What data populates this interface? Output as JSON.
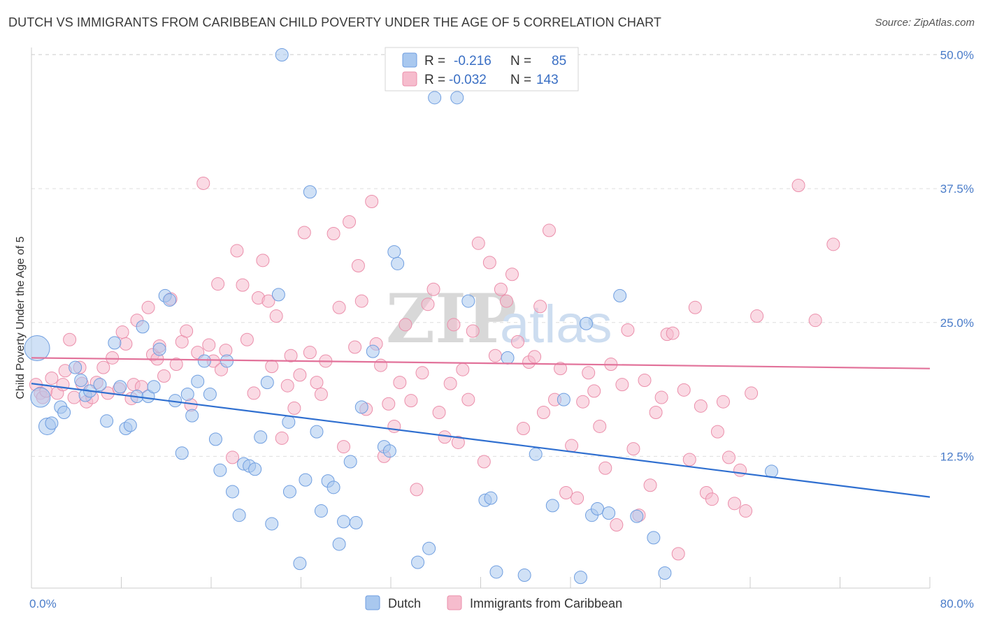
{
  "title": "DUTCH VS IMMIGRANTS FROM CARIBBEAN CHILD POVERTY UNDER THE AGE OF 5 CORRELATION CHART",
  "source": "Source: ZipAtlas.com",
  "watermark": {
    "zip": "ZIP",
    "atlas": "atlas"
  },
  "colors": {
    "dutch_fill": "#a9c8ef",
    "dutch_stroke": "#6f9ee0",
    "dutch_line": "#2f6fd0",
    "carib_fill": "#f6bccd",
    "carib_stroke": "#eb8fab",
    "carib_line": "#e2729a",
    "grid": "#dddddd",
    "axis_label": "#4a7cc9"
  },
  "legend": {
    "rows": [
      {
        "r_label": "R =",
        "r_value": "-0.216",
        "n_label": "N =",
        "n_value": "85"
      },
      {
        "r_label": "R =",
        "r_value": "-0.032",
        "n_label": "N =",
        "n_value": "143"
      }
    ]
  },
  "bottom_legend": [
    "Dutch",
    "Immigrants from Caribbean"
  ],
  "chart_data": {
    "type": "scatter",
    "title": "DUTCH VS IMMIGRANTS FROM CARIBBEAN CHILD POVERTY UNDER THE AGE OF 5 CORRELATION CHART",
    "xlabel": "",
    "ylabel": "Child Poverty Under the Age of 5",
    "xlim": [
      0,
      80
    ],
    "ylim": [
      0,
      50
    ],
    "x_tick_labels": [
      "0.0%",
      "80.0%"
    ],
    "y_ticks": [
      12.5,
      25.0,
      37.5,
      50.0
    ],
    "y_tick_labels": [
      "12.5%",
      "25.0%",
      "37.5%",
      "50.0%"
    ],
    "grid": "horizontal dashed",
    "legend_placement": "top-center",
    "series": [
      {
        "name": "Dutch",
        "trend": {
          "x": [
            0,
            80
          ],
          "y": [
            19.3,
            8.7
          ]
        },
        "points": [
          [
            0.5,
            22.6,
            18
          ],
          [
            0.8,
            18.0,
            14
          ],
          [
            1.4,
            15.3,
            12
          ],
          [
            1.8,
            15.6,
            9
          ],
          [
            2.6,
            17.1,
            9
          ],
          [
            2.9,
            16.6,
            9
          ],
          [
            3.9,
            20.8,
            9
          ],
          [
            4.4,
            19.6,
            9
          ],
          [
            4.8,
            18.2,
            9
          ],
          [
            5.2,
            18.6,
            9
          ],
          [
            6.1,
            19.2,
            9
          ],
          [
            6.7,
            15.8,
            9
          ],
          [
            7.4,
            23.1,
            9
          ],
          [
            7.9,
            19.0,
            9
          ],
          [
            8.4,
            15.1,
            9
          ],
          [
            8.8,
            15.4,
            9
          ],
          [
            9.4,
            18.1,
            9
          ],
          [
            9.9,
            24.6,
            9
          ],
          [
            10.4,
            18.1,
            9
          ],
          [
            10.9,
            19.0,
            9
          ],
          [
            11.4,
            22.5,
            9
          ],
          [
            11.9,
            27.5,
            9
          ],
          [
            12.3,
            27.1,
            9
          ],
          [
            12.8,
            17.7,
            9
          ],
          [
            13.4,
            12.8,
            9
          ],
          [
            13.9,
            18.3,
            9
          ],
          [
            14.3,
            16.3,
            9
          ],
          [
            14.8,
            19.5,
            9
          ],
          [
            15.4,
            21.4,
            9
          ],
          [
            15.9,
            18.3,
            9
          ],
          [
            16.4,
            14.1,
            9
          ],
          [
            16.8,
            11.2,
            9
          ],
          [
            17.4,
            21.4,
            9
          ],
          [
            17.9,
            9.2,
            9
          ],
          [
            18.5,
            7.0,
            9
          ],
          [
            18.9,
            11.8,
            9
          ],
          [
            19.4,
            11.6,
            9
          ],
          [
            19.9,
            11.3,
            9
          ],
          [
            20.4,
            14.3,
            9
          ],
          [
            21.0,
            19.4,
            9
          ],
          [
            21.4,
            6.2,
            9
          ],
          [
            22.0,
            27.6,
            9
          ],
          [
            22.3,
            50.0,
            9
          ],
          [
            22.9,
            15.7,
            9
          ],
          [
            23.0,
            9.2,
            9
          ],
          [
            23.9,
            2.5,
            9
          ],
          [
            24.4,
            10.3,
            9
          ],
          [
            24.8,
            37.2,
            9
          ],
          [
            25.4,
            14.8,
            9
          ],
          [
            25.8,
            7.4,
            9
          ],
          [
            26.4,
            10.2,
            9
          ],
          [
            26.9,
            9.6,
            9
          ],
          [
            27.4,
            4.3,
            9
          ],
          [
            27.8,
            6.4,
            9
          ],
          [
            28.4,
            12.0,
            9
          ],
          [
            28.9,
            6.3,
            9
          ],
          [
            29.4,
            17.1,
            9
          ],
          [
            30.4,
            22.3,
            9
          ],
          [
            31.4,
            13.4,
            9
          ],
          [
            31.9,
            13.0,
            9
          ],
          [
            32.3,
            31.6,
            9
          ],
          [
            32.6,
            30.5,
            9
          ],
          [
            34.4,
            2.6,
            9
          ],
          [
            35.4,
            3.9,
            9
          ],
          [
            35.9,
            46.0,
            9
          ],
          [
            37.9,
            46.0,
            9
          ],
          [
            38.9,
            27.0,
            9
          ],
          [
            40.4,
            8.4,
            9
          ],
          [
            40.9,
            8.6,
            9
          ],
          [
            41.4,
            1.7,
            9
          ],
          [
            42.4,
            21.7,
            9
          ],
          [
            43.9,
            1.4,
            9
          ],
          [
            44.9,
            12.7,
            9
          ],
          [
            46.4,
            7.9,
            9
          ],
          [
            47.4,
            17.8,
            9
          ],
          [
            48.9,
            1.2,
            9
          ],
          [
            49.4,
            24.9,
            9
          ],
          [
            49.9,
            7.0,
            9
          ],
          [
            50.4,
            7.6,
            9
          ],
          [
            51.4,
            7.2,
            9
          ],
          [
            52.4,
            27.5,
            9
          ],
          [
            53.9,
            6.9,
            9
          ],
          [
            55.4,
            4.9,
            9
          ],
          [
            56.4,
            1.6,
            9
          ],
          [
            65.9,
            11.1,
            9
          ]
        ]
      },
      {
        "name": "Immigrants from Caribbean",
        "trend": {
          "x": [
            0,
            80
          ],
          "y": [
            21.7,
            20.7
          ]
        },
        "points": [
          [
            0.4,
            19.2,
            9
          ],
          [
            0.8,
            18.4,
            9
          ],
          [
            1.0,
            18.0,
            9
          ],
          [
            1.3,
            18.6,
            9
          ],
          [
            1.8,
            19.8,
            9
          ],
          [
            2.3,
            18.4,
            9
          ],
          [
            2.8,
            19.2,
            9
          ],
          [
            3.0,
            20.5,
            9
          ],
          [
            3.4,
            23.4,
            9
          ],
          [
            3.8,
            18.0,
            9
          ],
          [
            4.3,
            20.8,
            9
          ],
          [
            4.5,
            19.3,
            9
          ],
          [
            4.9,
            17.6,
            9
          ],
          [
            5.4,
            18.0,
            9
          ],
          [
            5.8,
            19.4,
            9
          ],
          [
            6.4,
            20.8,
            9
          ],
          [
            6.8,
            18.4,
            9
          ],
          [
            7.2,
            21.7,
            9
          ],
          [
            7.8,
            18.8,
            9
          ],
          [
            8.1,
            24.1,
            9
          ],
          [
            8.4,
            23.0,
            9
          ],
          [
            8.9,
            17.9,
            9
          ],
          [
            9.1,
            19.2,
            9
          ],
          [
            9.4,
            25.2,
            9
          ],
          [
            9.8,
            19.0,
            9
          ],
          [
            10.4,
            26.4,
            9
          ],
          [
            10.8,
            22.0,
            9
          ],
          [
            11.2,
            21.6,
            9
          ],
          [
            11.4,
            22.8,
            9
          ],
          [
            11.8,
            20.0,
            9
          ],
          [
            12.4,
            27.2,
            9
          ],
          [
            12.9,
            21.1,
            9
          ],
          [
            13.4,
            23.2,
            9
          ],
          [
            13.8,
            24.2,
            9
          ],
          [
            14.2,
            17.3,
            9
          ],
          [
            14.8,
            22.2,
            9
          ],
          [
            15.3,
            38.0,
            9
          ],
          [
            15.8,
            22.9,
            9
          ],
          [
            16.2,
            21.4,
            9
          ],
          [
            16.6,
            28.6,
            9
          ],
          [
            16.9,
            20.6,
            9
          ],
          [
            17.3,
            22.4,
            9
          ],
          [
            17.9,
            12.4,
            9
          ],
          [
            18.3,
            31.7,
            9
          ],
          [
            18.8,
            28.5,
            9
          ],
          [
            19.2,
            23.4,
            9
          ],
          [
            19.8,
            18.4,
            9
          ],
          [
            20.2,
            27.3,
            9
          ],
          [
            20.6,
            30.8,
            9
          ],
          [
            21.1,
            27.0,
            9
          ],
          [
            21.4,
            20.9,
            9
          ],
          [
            21.8,
            25.6,
            9
          ],
          [
            22.3,
            14.2,
            9
          ],
          [
            22.8,
            19.1,
            9
          ],
          [
            23.1,
            21.9,
            9
          ],
          [
            23.4,
            17.0,
            9
          ],
          [
            23.9,
            20.1,
            9
          ],
          [
            24.3,
            33.4,
            9
          ],
          [
            24.8,
            22.2,
            9
          ],
          [
            25.4,
            19.4,
            9
          ],
          [
            25.8,
            18.3,
            9
          ],
          [
            26.2,
            21.4,
            9
          ],
          [
            26.9,
            33.3,
            9
          ],
          [
            27.4,
            26.4,
            9
          ],
          [
            27.8,
            13.4,
            9
          ],
          [
            28.3,
            34.4,
            9
          ],
          [
            28.8,
            22.7,
            9
          ],
          [
            29.1,
            30.3,
            9
          ],
          [
            29.4,
            27.0,
            9
          ],
          [
            29.8,
            16.9,
            9
          ],
          [
            30.3,
            36.3,
            9
          ],
          [
            30.7,
            23.0,
            9
          ],
          [
            31.1,
            21.0,
            9
          ],
          [
            31.4,
            12.5,
            9
          ],
          [
            31.8,
            17.4,
            9
          ],
          [
            32.3,
            15.3,
            9
          ],
          [
            32.8,
            19.4,
            9
          ],
          [
            33.3,
            24.8,
            9
          ],
          [
            33.8,
            17.7,
            9
          ],
          [
            34.3,
            9.4,
            9
          ],
          [
            34.8,
            20.3,
            9
          ],
          [
            35.3,
            26.7,
            9
          ],
          [
            35.8,
            28.1,
            9
          ],
          [
            36.3,
            16.6,
            9
          ],
          [
            36.8,
            14.3,
            9
          ],
          [
            37.3,
            19.3,
            9
          ],
          [
            37.6,
            24.8,
            9
          ],
          [
            38.0,
            13.8,
            9
          ],
          [
            38.4,
            20.6,
            9
          ],
          [
            38.9,
            17.8,
            9
          ],
          [
            39.3,
            24.2,
            9
          ],
          [
            39.8,
            32.4,
            9
          ],
          [
            40.3,
            12.0,
            9
          ],
          [
            40.8,
            30.6,
            9
          ],
          [
            41.3,
            21.9,
            9
          ],
          [
            41.8,
            28.1,
            9
          ],
          [
            42.3,
            27.0,
            9
          ],
          [
            42.8,
            29.5,
            9
          ],
          [
            43.3,
            23.2,
            9
          ],
          [
            43.8,
            15.1,
            9
          ],
          [
            44.3,
            21.3,
            9
          ],
          [
            44.8,
            21.8,
            9
          ],
          [
            45.3,
            26.5,
            9
          ],
          [
            45.6,
            16.6,
            9
          ],
          [
            46.1,
            33.6,
            9
          ],
          [
            46.6,
            17.8,
            9
          ],
          [
            47.1,
            20.7,
            9
          ],
          [
            47.6,
            9.1,
            9
          ],
          [
            48.1,
            13.5,
            9
          ],
          [
            48.6,
            8.6,
            9
          ],
          [
            49.1,
            17.6,
            9
          ],
          [
            49.6,
            20.3,
            9
          ],
          [
            50.1,
            18.6,
            9
          ],
          [
            50.6,
            15.3,
            9
          ],
          [
            51.1,
            11.4,
            9
          ],
          [
            51.6,
            21.1,
            9
          ],
          [
            52.1,
            6.1,
            9
          ],
          [
            52.6,
            19.2,
            9
          ],
          [
            53.1,
            24.3,
            9
          ],
          [
            53.6,
            13.2,
            9
          ],
          [
            54.1,
            7.0,
            9
          ],
          [
            54.6,
            19.6,
            9
          ],
          [
            55.1,
            9.8,
            9
          ],
          [
            55.6,
            16.6,
            9
          ],
          [
            56.1,
            18.0,
            9
          ],
          [
            56.6,
            23.9,
            9
          ],
          [
            57.1,
            24.0,
            9
          ],
          [
            57.6,
            3.4,
            9
          ],
          [
            58.1,
            18.7,
            9
          ],
          [
            58.6,
            12.2,
            9
          ],
          [
            59.1,
            26.4,
            9
          ],
          [
            59.6,
            17.2,
            9
          ],
          [
            60.1,
            9.1,
            9
          ],
          [
            60.6,
            8.5,
            9
          ],
          [
            61.1,
            14.8,
            9
          ],
          [
            61.6,
            17.6,
            9
          ],
          [
            62.1,
            12.4,
            9
          ],
          [
            62.6,
            8.1,
            9
          ],
          [
            63.1,
            11.2,
            9
          ],
          [
            63.6,
            7.4,
            9
          ],
          [
            64.1,
            18.4,
            9
          ],
          [
            64.6,
            25.6,
            9
          ],
          [
            68.3,
            37.8,
            9
          ],
          [
            69.8,
            25.2,
            9
          ],
          [
            71.4,
            32.3,
            9
          ]
        ]
      }
    ]
  }
}
